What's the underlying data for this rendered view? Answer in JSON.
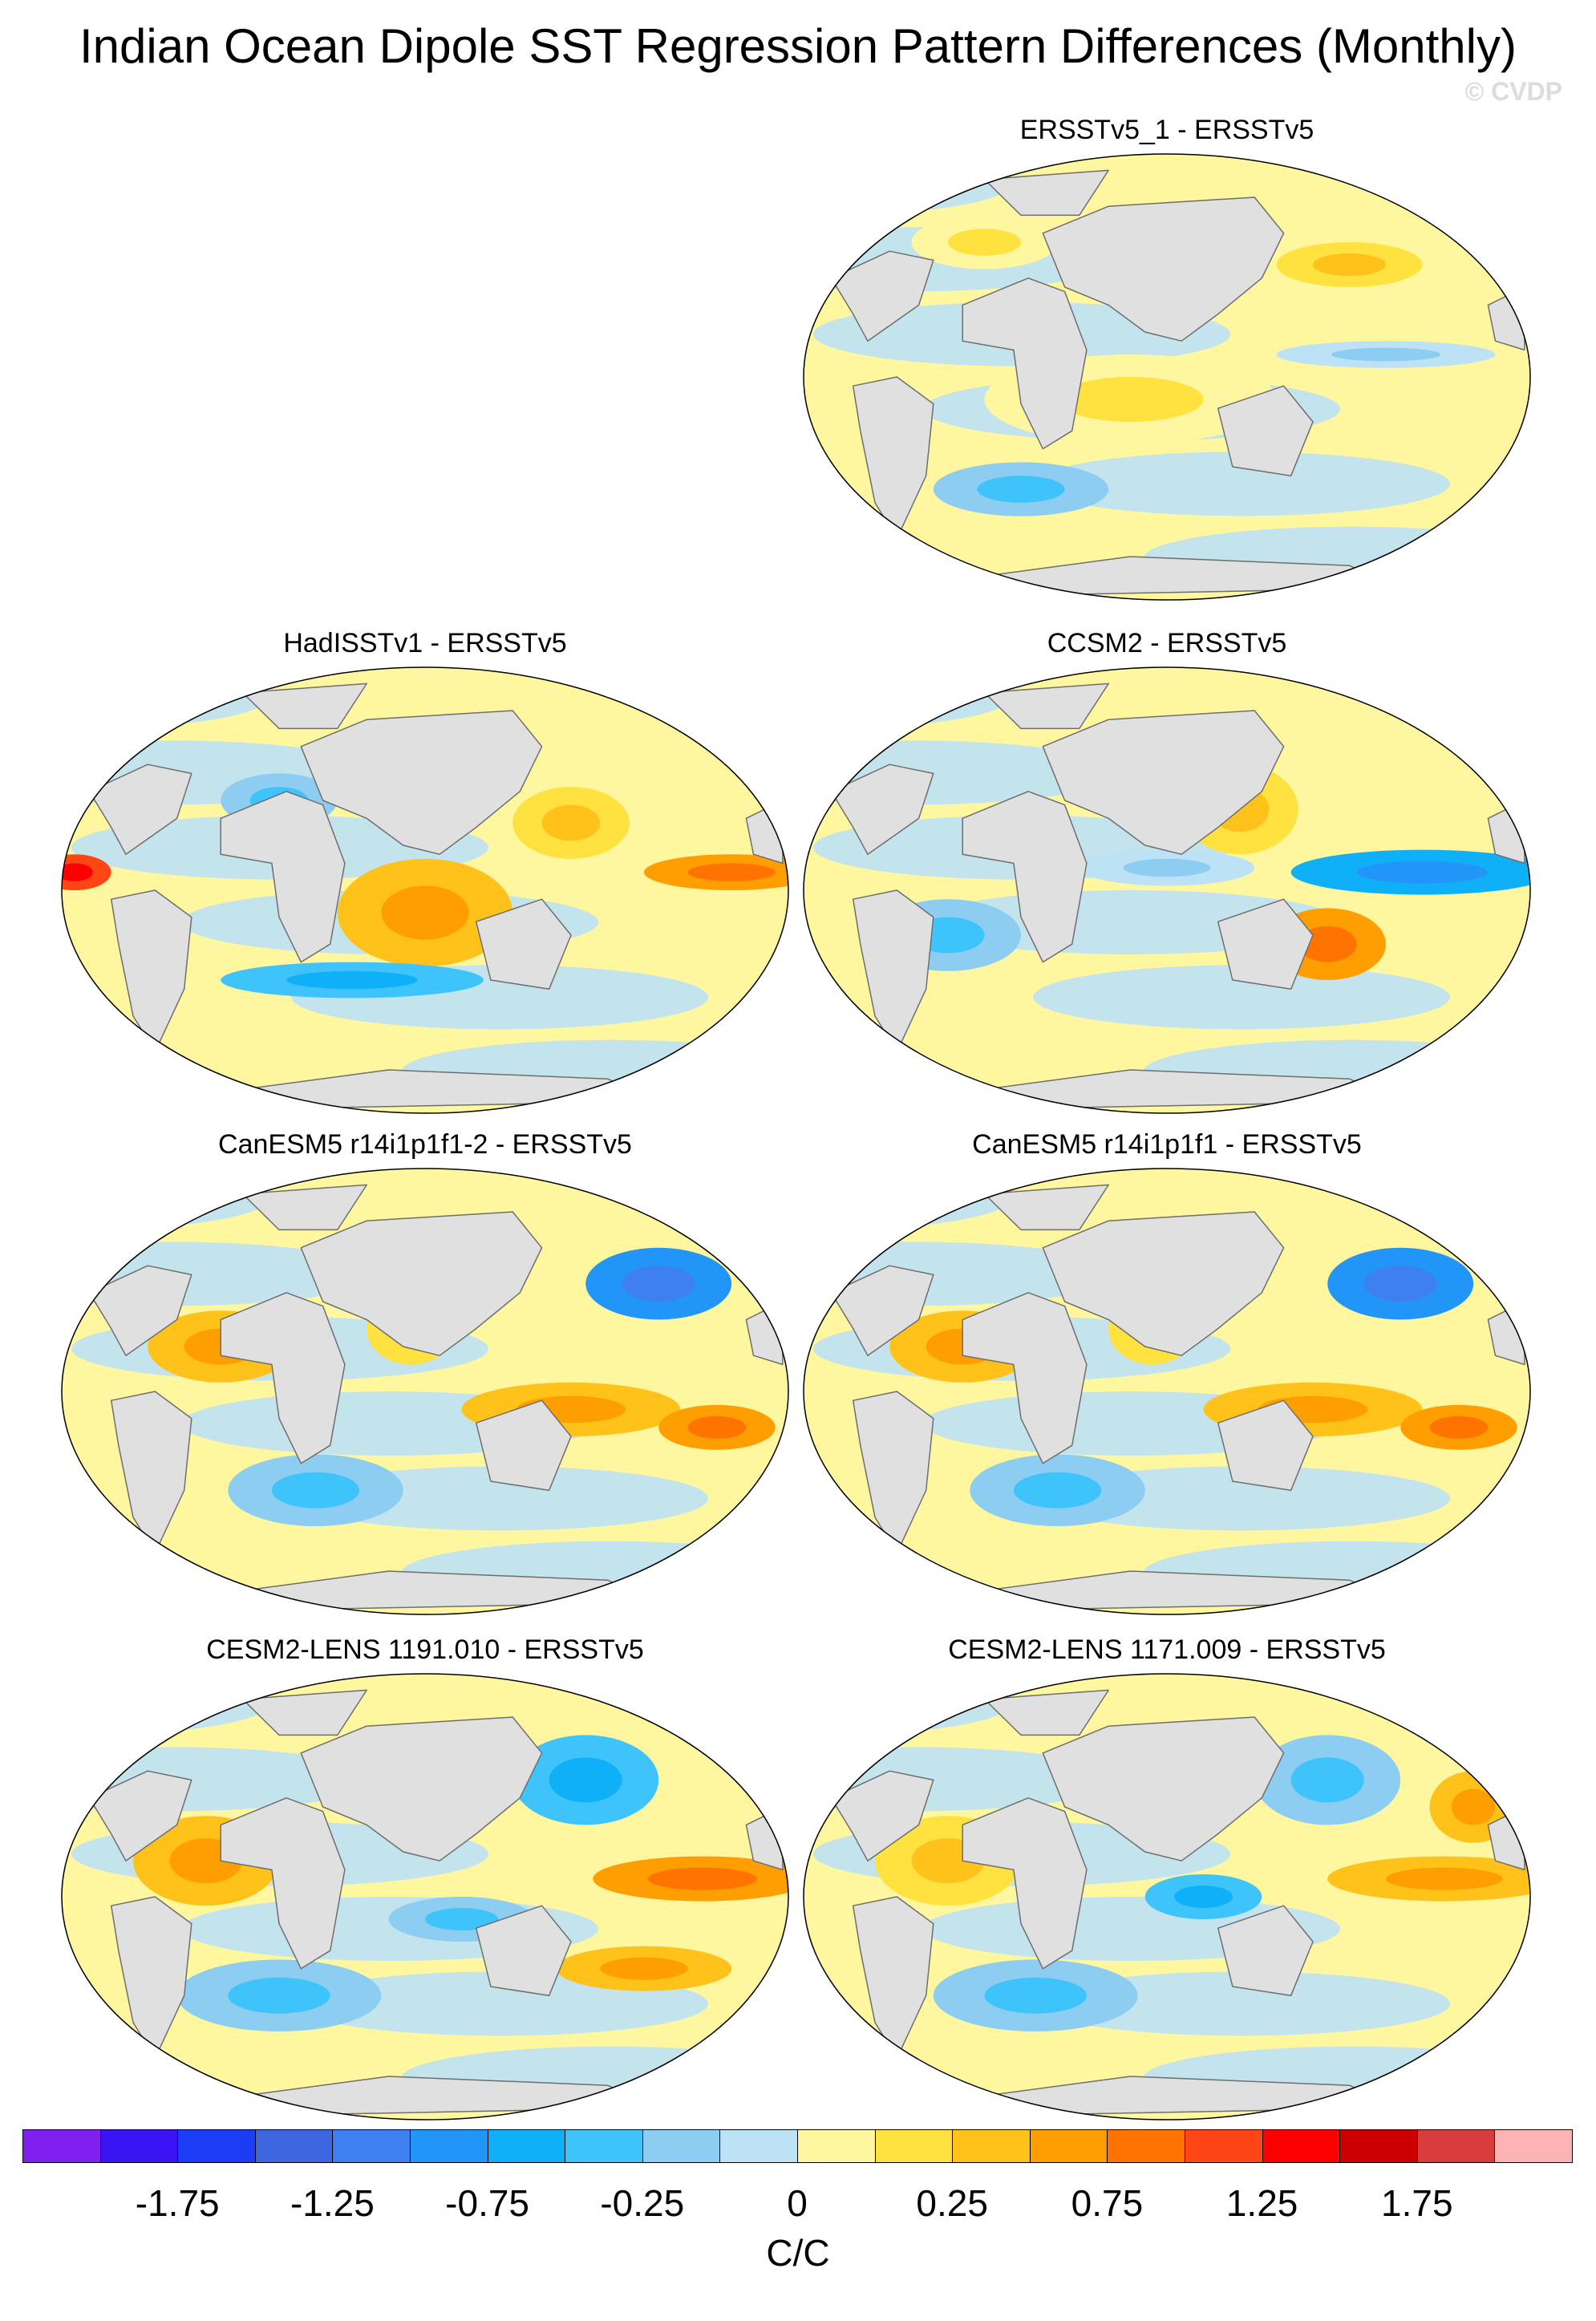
{
  "title": "Indian Ocean Dipole SST Regression Pattern Differences (Monthly)",
  "copyright": "© CVDP",
  "panels": [
    {
      "label": "ERSSTv5_1 - ERSSTv5",
      "variant": 0
    },
    {
      "label": "HadISSTv1 - ERSSTv5",
      "variant": 1
    },
    {
      "label": "CCSM2 - ERSSTv5",
      "variant": 2
    },
    {
      "label": "CanESM5 r14i1p1f1-2 - ERSSTv5",
      "variant": 3
    },
    {
      "label": "CanESM5 r14i1p1f1 - ERSSTv5",
      "variant": 3
    },
    {
      "label": "CESM2-LENS 1191.010 - ERSSTv5",
      "variant": 4
    },
    {
      "label": "CESM2-LENS 1171.009 - ERSSTv5",
      "variant": 5
    }
  ],
  "colorbar": {
    "colors": [
      "#7f1ff0",
      "#3b14f5",
      "#1d3cf5",
      "#3d66e0",
      "#3f80f0",
      "#2295f9",
      "#10b0f9",
      "#3fc3fb",
      "#8ccdf1",
      "#bde1f5",
      "#fff7a0",
      "#ffe13f",
      "#ffc21a",
      "#ff9e00",
      "#ff7300",
      "#ff4614",
      "#ff0000",
      "#cc0000",
      "#d83c3c",
      "#ffb4b4"
    ],
    "labels": [
      "-1.75",
      "-1.25",
      "-0.75",
      "-0.25",
      "0",
      "0.25",
      "0.75",
      "1.25",
      "1.75"
    ],
    "units": "C/C"
  },
  "palette": {
    "land": "#e0e0e0",
    "coast": "#6e6e6e",
    "neutral_pos": "#fff7a0",
    "neutral_neg": "#bde1f5"
  }
}
